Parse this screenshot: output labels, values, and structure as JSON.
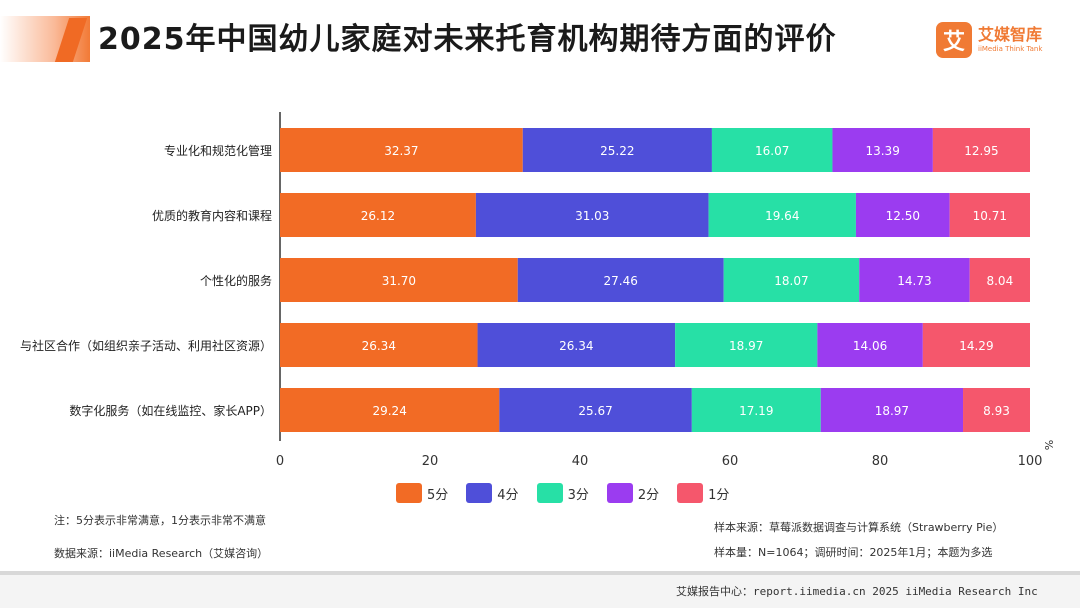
{
  "header": {
    "title": "2025年中国幼儿家庭对未来托育机构期待方面的评价",
    "logo_mark": "艾",
    "logo_cn": "艾媒智库",
    "logo_en": "iiMedia Think Tank"
  },
  "chart_data": {
    "type": "bar",
    "orientation": "horizontal",
    "stacked": true,
    "title": "2025年中国幼儿家庭对未来托育机构期待方面的评价",
    "unit_label": "%",
    "xlim": [
      0,
      100
    ],
    "xticks": [
      0,
      20,
      40,
      60,
      80,
      100
    ],
    "categories": [
      "专业化和规范化管理",
      "优质的教育内容和课程",
      "个性化的服务",
      "与社区合作（如组织亲子活动、利用社区资源）",
      "数字化服务（如在线监控、家长APP）"
    ],
    "series": [
      {
        "name": "5分",
        "color": "#f26b25",
        "values": [
          32.37,
          26.12,
          31.7,
          26.34,
          29.24
        ]
      },
      {
        "name": "4分",
        "color": "#4f4fd9",
        "values": [
          25.22,
          31.03,
          27.46,
          26.34,
          25.67
        ]
      },
      {
        "name": "3分",
        "color": "#27e0a6",
        "values": [
          16.07,
          19.64,
          18.07,
          18.97,
          17.19
        ]
      },
      {
        "name": "2分",
        "color": "#9b3cf0",
        "values": [
          13.39,
          12.5,
          14.73,
          14.06,
          18.97
        ]
      },
      {
        "name": "1分",
        "color": "#f5576c",
        "values": [
          12.95,
          10.71,
          8.04,
          14.29,
          8.93
        ]
      }
    ],
    "legend_position": "bottom"
  },
  "notes": {
    "left_1": "注：5分表示非常满意，1分表示非常不满意",
    "left_2": "数据来源：iiMedia Research（艾媒咨询）",
    "right_1": "样本来源：草莓派数据调查与计算系统（Strawberry Pie）",
    "right_2": "样本量：N=1064；调研时间：2025年1月；本题为多选"
  },
  "footer": {
    "text": "艾媒报告中心：report.iimedia.cn   2025 iiMedia Research Inc"
  }
}
